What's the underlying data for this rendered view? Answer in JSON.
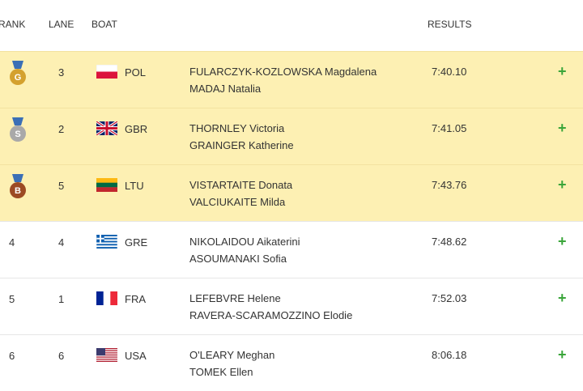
{
  "header": {
    "rank": "RANK",
    "lane": "LANE",
    "boat": "BOAT",
    "results": "RESULTS"
  },
  "rows": [
    {
      "rank": "G",
      "lane": "3",
      "country": "POL",
      "athletes": [
        "FULARCZYK-KOZLOWSKA Magdalena",
        "MADAJ Natalia"
      ],
      "result": "7:40.10",
      "expand": "+"
    },
    {
      "rank": "S",
      "lane": "2",
      "country": "GBR",
      "athletes": [
        "THORNLEY Victoria",
        "GRAINGER Katherine"
      ],
      "result": "7:41.05",
      "expand": "+"
    },
    {
      "rank": "B",
      "lane": "5",
      "country": "LTU",
      "athletes": [
        "VISTARTAITE Donata",
        "VALCIUKAITE Milda"
      ],
      "result": "7:43.76",
      "expand": "+"
    },
    {
      "rank": "4",
      "lane": "4",
      "country": "GRE",
      "athletes": [
        "NIKOLAIDOU Aikaterini",
        "ASOUMANAKI Sofia"
      ],
      "result": "7:48.62",
      "expand": "+"
    },
    {
      "rank": "5",
      "lane": "1",
      "country": "FRA",
      "athletes": [
        "LEFEBVRE Helene",
        "RAVERA-SCARAMOZZINO Elodie"
      ],
      "result": "7:52.03",
      "expand": "+"
    },
    {
      "rank": "6",
      "lane": "6",
      "country": "USA",
      "athletes": [
        "O'LEARY Meghan",
        "TOMEK Ellen"
      ],
      "result": "8:06.18",
      "expand": "+"
    }
  ]
}
